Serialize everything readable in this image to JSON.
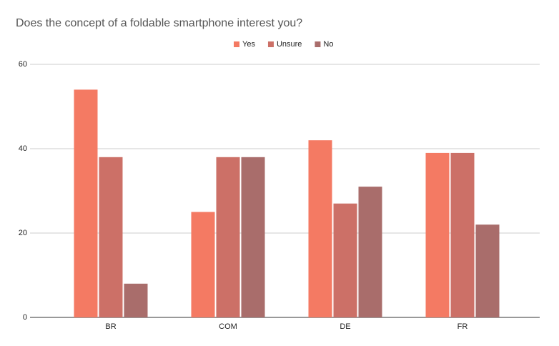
{
  "chart_data": {
    "type": "bar",
    "title": "Does the concept of a foldable smartphone interest you?",
    "categories": [
      "BR",
      "COM",
      "DE",
      "FR"
    ],
    "series": [
      {
        "name": "Yes",
        "color": "#f47a63",
        "values": [
          54,
          25,
          42,
          39
        ]
      },
      {
        "name": "Unsure",
        "color": "#cc7067",
        "values": [
          38,
          38,
          27,
          39
        ]
      },
      {
        "name": "No",
        "color": "#a96d6b",
        "values": [
          8,
          38,
          31,
          22
        ]
      }
    ],
    "ylim": [
      0,
      60
    ],
    "yticks": [
      0,
      20,
      40,
      60
    ],
    "grid": true,
    "legend": "top"
  }
}
